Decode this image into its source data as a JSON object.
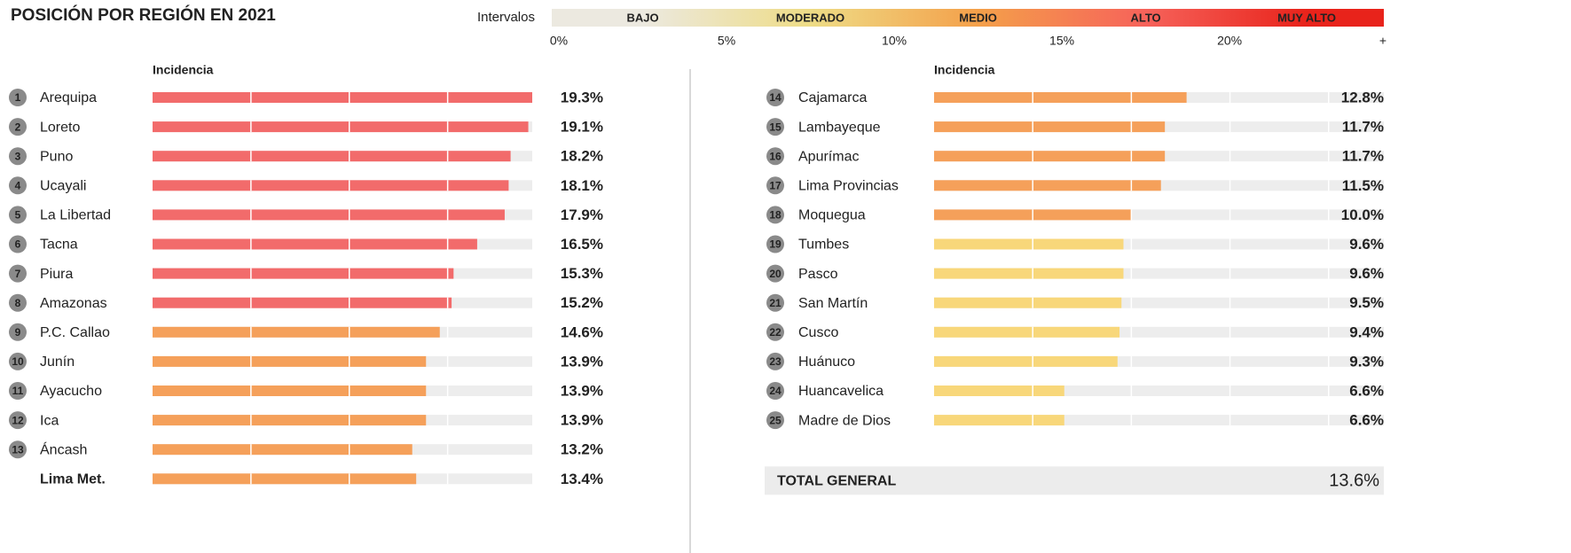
{
  "chart_data": {
    "type": "bar",
    "title": "POSICIÓN POR REGIÓN EN 2021",
    "legend": {
      "label": "Intervalos",
      "xlim": [
        0,
        24.6
      ],
      "xticks": [
        {
          "value": 0,
          "label": "0%"
        },
        {
          "value": 5,
          "label": "5%"
        },
        {
          "value": 10,
          "label": "10%"
        },
        {
          "value": 15,
          "label": "15%"
        },
        {
          "value": 20,
          "label": "20%"
        }
      ],
      "end_label": "+",
      "intervals": [
        {
          "name": "BAJO",
          "color": "#ece9e0",
          "bar_color": "#ece9e0"
        },
        {
          "name": "MODERADO",
          "color": "#eedc86",
          "bar_color": "#f8d77a"
        },
        {
          "name": "MEDIO",
          "color": "#f4a04a",
          "bar_color": "#f5a05a"
        },
        {
          "name": "ALTO",
          "color": "#f6625a",
          "bar_color": "#f26b6b"
        },
        {
          "name": "MUY ALTO",
          "color": "#e8231b",
          "bar_color": "#e8231b"
        }
      ]
    },
    "panels": [
      {
        "header": "Incidencia",
        "xlim": [
          0,
          19.3
        ],
        "rows": [
          {
            "rank": 1,
            "name": "Arequipa",
            "value": 19.3,
            "value_label": "19.3%"
          },
          {
            "rank": 2,
            "name": "Loreto",
            "value": 19.1,
            "value_label": "19.1%"
          },
          {
            "rank": 3,
            "name": "Puno",
            "value": 18.2,
            "value_label": "18.2%"
          },
          {
            "rank": 4,
            "name": "Ucayali",
            "value": 18.1,
            "value_label": "18.1%"
          },
          {
            "rank": 5,
            "name": "La Libertad",
            "value": 17.9,
            "value_label": "17.9%"
          },
          {
            "rank": 6,
            "name": "Tacna",
            "value": 16.5,
            "value_label": "16.5%"
          },
          {
            "rank": 7,
            "name": "Piura",
            "value": 15.3,
            "value_label": "15.3%"
          },
          {
            "rank": 8,
            "name": "Amazonas",
            "value": 15.2,
            "value_label": "15.2%"
          },
          {
            "rank": 9,
            "name": "P.C. Callao",
            "value": 14.6,
            "value_label": "14.6%"
          },
          {
            "rank": 10,
            "name": "Junín",
            "value": 13.9,
            "value_label": "13.9%"
          },
          {
            "rank": 11,
            "name": "Ayacucho",
            "value": 13.9,
            "value_label": "13.9%"
          },
          {
            "rank": 12,
            "name": "Ica",
            "value": 13.9,
            "value_label": "13.9%"
          },
          {
            "rank": 13,
            "name": "Áncash",
            "value": 13.2,
            "value_label": "13.2%"
          },
          {
            "name": "Lima Met.",
            "value": 13.4,
            "value_label": "13.4%"
          }
        ]
      },
      {
        "header": "Incidencia",
        "xlim": [
          0,
          22.8
        ],
        "rows": [
          {
            "rank": 14,
            "name": "Cajamarca",
            "value": 12.8,
            "value_label": "12.8%"
          },
          {
            "rank": 15,
            "name": "Lambayeque",
            "value": 11.7,
            "value_label": "11.7%"
          },
          {
            "rank": 16,
            "name": "Apurímac",
            "value": 11.7,
            "value_label": "11.7%"
          },
          {
            "rank": 17,
            "name": "Lima Provincias",
            "value": 11.5,
            "value_label": "11.5%"
          },
          {
            "rank": 18,
            "name": "Moquegua",
            "value": 10.0,
            "value_label": "10.0%"
          },
          {
            "rank": 19,
            "name": "Tumbes",
            "value": 9.6,
            "value_label": "9.6%"
          },
          {
            "rank": 20,
            "name": "Pasco",
            "value": 9.6,
            "value_label": "9.6%"
          },
          {
            "rank": 21,
            "name": "San Martín",
            "value": 9.5,
            "value_label": "9.5%"
          },
          {
            "rank": 22,
            "name": "Cusco",
            "value": 9.4,
            "value_label": "9.4%"
          },
          {
            "rank": 23,
            "name": "Huánuco",
            "value": 9.3,
            "value_label": "9.3%"
          },
          {
            "rank": 24,
            "name": "Huancavelica",
            "value": 6.6,
            "value_label": "6.6%"
          },
          {
            "rank": 25,
            "name": "Madre de Dios",
            "value": 6.6,
            "value_label": "6.6%"
          }
        ]
      }
    ],
    "total": {
      "label": "TOTAL GENERAL",
      "value": 13.6,
      "value_label": "13.6%",
      "color": "#f08a24"
    }
  }
}
